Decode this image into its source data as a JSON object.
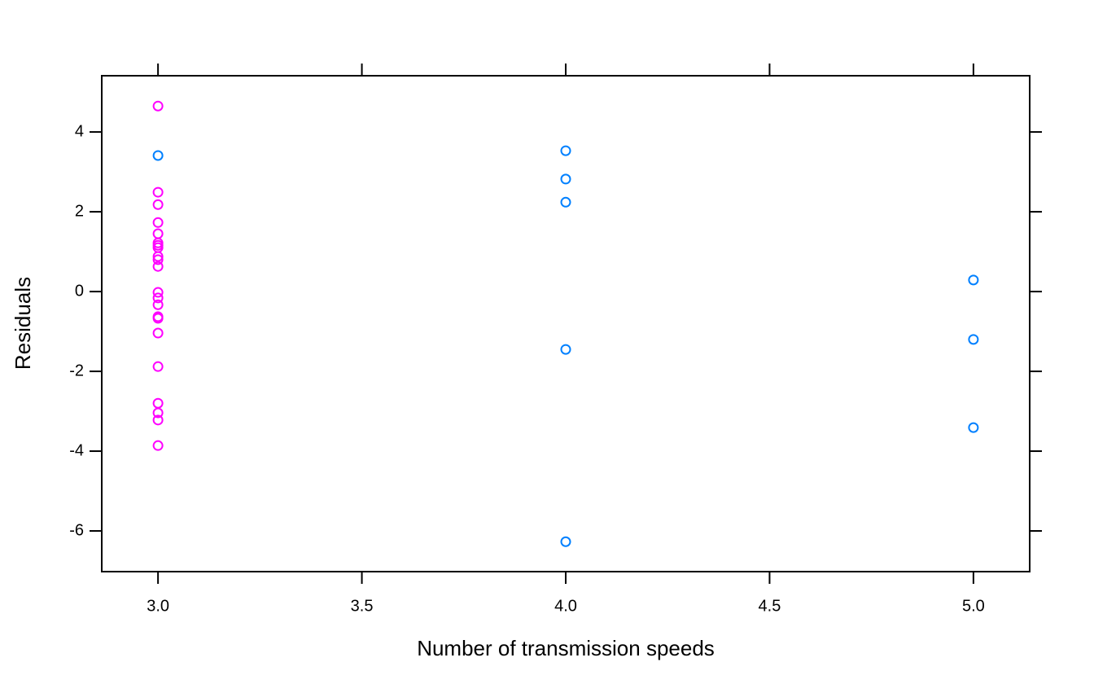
{
  "chart_data": {
    "type": "scatter",
    "x_label": "Number of transmission speeds",
    "y_label": "Residuals",
    "xlim": [
      2.862,
      5.138
    ],
    "ylim": [
      -7.02,
      5.41
    ],
    "xticks": [
      {
        "value": 3.0,
        "label": "3.0"
      },
      {
        "value": 3.5,
        "label": "3.5"
      },
      {
        "value": 4.0,
        "label": "4.0"
      },
      {
        "value": 4.5,
        "label": "4.5"
      },
      {
        "value": 5.0,
        "label": "5.0"
      }
    ],
    "yticks": [
      -6,
      -4,
      -2,
      0,
      2,
      4
    ],
    "grid": false,
    "series": [
      {
        "color": "#ff00ff",
        "x": [
          3,
          3,
          3,
          3,
          3,
          3,
          3,
          3,
          3,
          3,
          3,
          3,
          3,
          3,
          3,
          3,
          3,
          3,
          3,
          3,
          3,
          3
        ],
        "values": [
          4.65,
          2.49,
          2.18,
          1.73,
          1.45,
          1.22,
          1.16,
          1.1,
          0.88,
          0.8,
          0.63,
          -0.02,
          -0.16,
          -0.33,
          -0.63,
          -0.67,
          -1.04,
          -1.88,
          -2.8,
          -3.04,
          -3.22,
          -3.86
        ]
      },
      {
        "color": "#0080ff",
        "x": [
          3,
          4,
          4,
          4,
          4,
          4,
          5,
          5,
          5
        ],
        "values": [
          3.41,
          3.53,
          2.82,
          2.24,
          -1.45,
          -6.27,
          0.29,
          -1.2,
          -3.41
        ]
      }
    ]
  }
}
